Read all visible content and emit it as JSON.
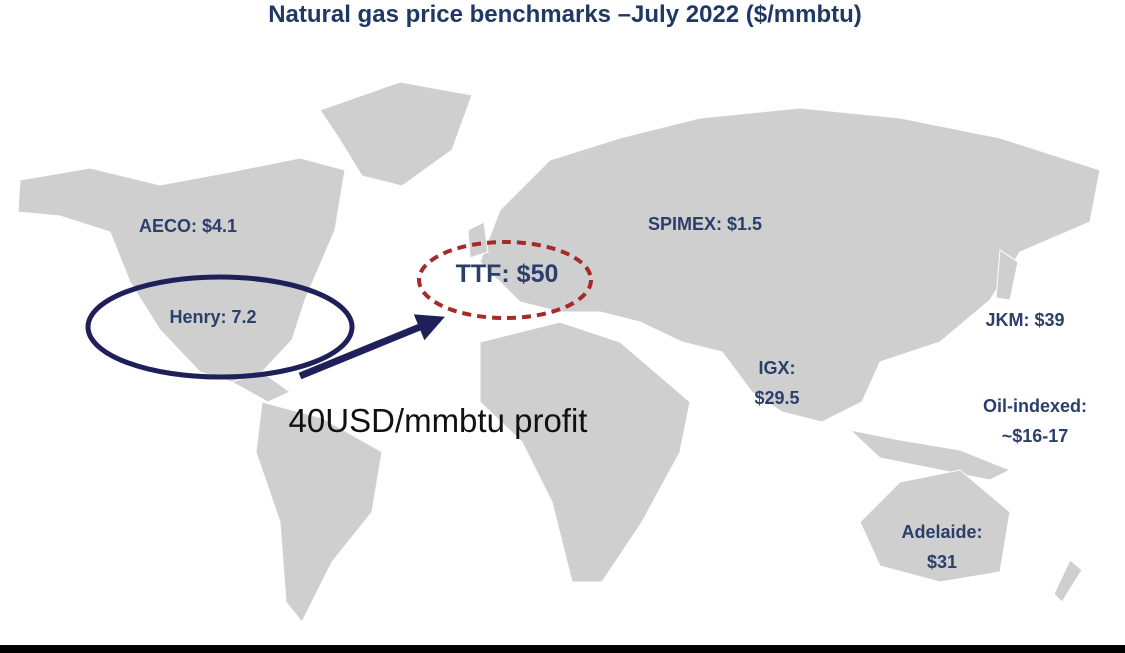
{
  "title": "Natural gas price benchmarks –July 2022 ($/mmbtu)",
  "markers": [
    {
      "lines": [
        "AECO: $4.1"
      ]
    },
    {
      "lines": [
        "Henry: 7.2"
      ]
    },
    {
      "lines": [
        "TTF: $50"
      ]
    },
    {
      "lines": [
        "SPIMEX: $1.5"
      ]
    },
    {
      "lines": [
        "JKM: $39"
      ]
    },
    {
      "lines": [
        "IGX:",
        "$29.5"
      ]
    },
    {
      "lines": [
        "Oil-indexed:",
        "~$16-17"
      ]
    },
    {
      "lines": [
        "Adelaide:",
        "$31"
      ]
    }
  ],
  "annotation": "40USD/mmbtu profit"
}
